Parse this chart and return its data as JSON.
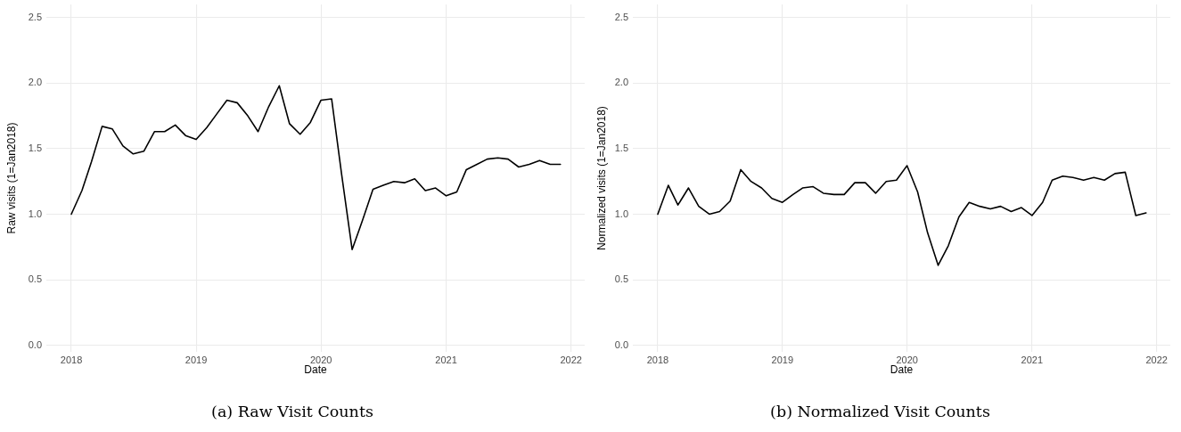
{
  "chart_data": [
    {
      "type": "line",
      "title": "(a) Raw Visit Counts",
      "xlabel": "Date",
      "ylabel": "Raw visits (1=Jan2018)",
      "x": [
        "2018-01",
        "2018-02",
        "2018-03",
        "2018-04",
        "2018-05",
        "2018-06",
        "2018-07",
        "2018-08",
        "2018-09",
        "2018-10",
        "2018-11",
        "2018-12",
        "2019-01",
        "2019-02",
        "2019-03",
        "2019-04",
        "2019-05",
        "2019-06",
        "2019-07",
        "2019-08",
        "2019-09",
        "2019-10",
        "2019-11",
        "2019-12",
        "2020-01",
        "2020-02",
        "2020-03",
        "2020-04",
        "2020-05",
        "2020-06",
        "2020-07",
        "2020-08",
        "2020-09",
        "2020-10",
        "2020-11",
        "2020-12",
        "2021-01",
        "2021-02",
        "2021-03",
        "2021-04",
        "2021-05",
        "2021-06",
        "2021-07",
        "2021-08",
        "2021-09",
        "2021-10",
        "2021-11",
        "2021-12"
      ],
      "series": [
        {
          "color": "#000000",
          "values": [
            1.0,
            1.18,
            1.4,
            1.67,
            1.65,
            1.52,
            1.46,
            1.48,
            1.63,
            1.63,
            1.68,
            1.6,
            1.57,
            1.66,
            1.76,
            1.87,
            1.85,
            1.75,
            1.63,
            1.82,
            1.98,
            1.69,
            1.61,
            1.7,
            1.87,
            1.88,
            1.31,
            0.73,
            0.95,
            1.19,
            1.22,
            1.25,
            1.24,
            1.27,
            1.18,
            1.2,
            1.14,
            1.17,
            1.34,
            1.38,
            1.42,
            1.43,
            1.42,
            1.36,
            1.38,
            1.41,
            1.38,
            1.38
          ]
        }
      ],
      "xlim": [
        "2017-10-20",
        "2022-02-10"
      ],
      "xticks": [
        "2018",
        "2019",
        "2020",
        "2021",
        "2022"
      ],
      "ylim": [
        -0.05,
        2.6
      ],
      "yticks": [
        {
          "value": 0,
          "label": "0.0"
        },
        {
          "value": 0.5,
          "label": "0.5"
        },
        {
          "value": 1,
          "label": "1.0"
        },
        {
          "value": 1.5,
          "label": "1.5"
        },
        {
          "value": 2,
          "label": "2.0"
        },
        {
          "value": 2.5,
          "label": "2.5"
        }
      ],
      "grid": true
    },
    {
      "type": "line",
      "title": "(b) Normalized Visit Counts",
      "xlabel": "Date",
      "ylabel": "Normalized visits (1=Jan2018)",
      "x": [
        "2018-01",
        "2018-02",
        "2018-03",
        "2018-04",
        "2018-05",
        "2018-06",
        "2018-07",
        "2018-08",
        "2018-09",
        "2018-10",
        "2018-11",
        "2018-12",
        "2019-01",
        "2019-02",
        "2019-03",
        "2019-04",
        "2019-05",
        "2019-06",
        "2019-07",
        "2019-08",
        "2019-09",
        "2019-10",
        "2019-11",
        "2019-12",
        "2020-01",
        "2020-02",
        "2020-03",
        "2020-04",
        "2020-05",
        "2020-06",
        "2020-07",
        "2020-08",
        "2020-09",
        "2020-10",
        "2020-11",
        "2020-12",
        "2021-01",
        "2021-02",
        "2021-03",
        "2021-04",
        "2021-05",
        "2021-06",
        "2021-07",
        "2021-08",
        "2021-09",
        "2021-10",
        "2021-11",
        "2021-12"
      ],
      "series": [
        {
          "color": "#000000",
          "values": [
            1.0,
            1.22,
            1.07,
            1.2,
            1.06,
            1.0,
            1.02,
            1.1,
            1.34,
            1.25,
            1.2,
            1.12,
            1.09,
            1.15,
            1.2,
            1.21,
            1.16,
            1.15,
            1.15,
            1.24,
            1.24,
            1.16,
            1.25,
            1.26,
            1.37,
            1.17,
            0.86,
            0.61,
            0.76,
            0.98,
            1.09,
            1.06,
            1.04,
            1.06,
            1.02,
            1.05,
            0.99,
            1.09,
            1.26,
            1.29,
            1.28,
            1.26,
            1.28,
            1.26,
            1.31,
            1.32,
            0.99,
            1.01
          ]
        }
      ],
      "xlim": [
        "2017-10-20",
        "2022-02-10"
      ],
      "xticks": [
        "2018",
        "2019",
        "2020",
        "2021",
        "2022"
      ],
      "ylim": [
        -0.05,
        2.6
      ],
      "yticks": [
        {
          "value": 0,
          "label": "0.0"
        },
        {
          "value": 0.5,
          "label": "0.5"
        },
        {
          "value": 1,
          "label": "1.0"
        },
        {
          "value": 1.5,
          "label": "1.5"
        },
        {
          "value": 2,
          "label": "2.0"
        },
        {
          "value": 2.5,
          "label": "2.5"
        }
      ],
      "grid": true
    }
  ]
}
